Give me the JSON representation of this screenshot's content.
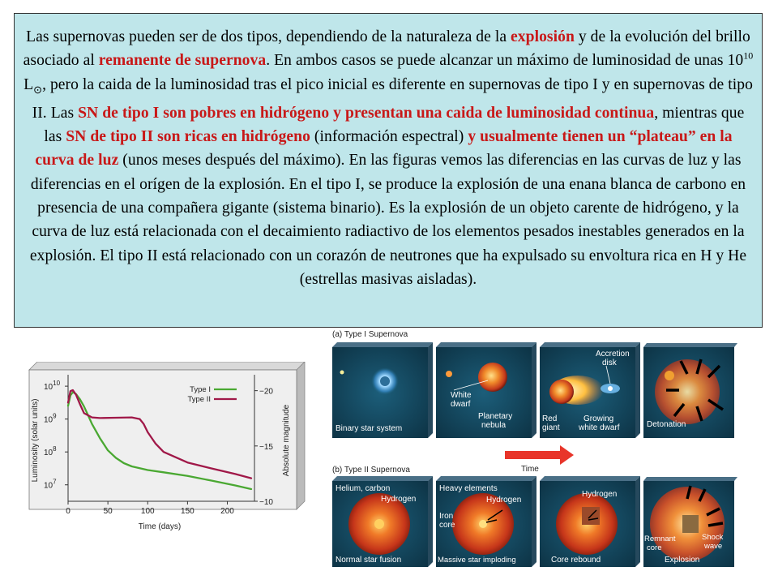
{
  "paragraph": {
    "t1": "Las supernovas pueden ser de dos tipos, dependiendo de la naturaleza de la ",
    "h1": "explosión",
    "t2": " y de la evolución del brillo asociado al ",
    "h2": "remanente de supernova",
    "t3": ". En ambos casos se puede alcanzar un máximo de luminosidad de unas 10",
    "sup": "10",
    "t4": " L",
    "sun": "⊙",
    "t5": ", pero la caida de la luminosidad tras el pico inicial es diferente en supernovas de tipo I y en supernovas de tipo II. Las ",
    "h3": "SN de tipo I son pobres en hidrógeno y presentan una caida de luminosidad continua",
    "t6": ", mientras que las ",
    "h4": "SN de tipo II son ricas en hidrógeno",
    "t7": " (información espectral) ",
    "h5": "y usualmente tienen un “plateau” en la curva de luz",
    "t8": " (unos meses después del máximo). En las figuras vemos las diferencias en las curvas de luz y las diferencias en el orígen de la explosión. En el tipo I, se produce la explosión de una enana blanca de carbono en presencia de una compañera gigante (sistema binario). Es la explosión de un objeto carente de hidrógeno, y la curva de luz está relacionada con el decaimiento radiactivo de los elementos pesados inestables generados en la explosión. El tipo II está relacionado con un corazón de neutrones que ha expulsado su envoltura rica en H y He (estrellas masivas aisladas)."
  },
  "chart_data": {
    "type": "line",
    "xlabel": "Time (days)",
    "ylabel": "Luminosity (solar units)",
    "y2label": "Absolute magnitude",
    "xticks": [
      "0",
      "50",
      "100",
      "150",
      "200"
    ],
    "yticks": [
      {
        "base": "10",
        "exp": "10"
      },
      {
        "base": "10",
        "exp": "9"
      },
      {
        "base": "10",
        "exp": "8"
      },
      {
        "base": "10",
        "exp": "7"
      }
    ],
    "y2ticks": [
      "−20",
      "−15",
      "−10"
    ],
    "xlim": [
      0,
      230
    ],
    "ylim_log10": [
      6.5,
      10.2
    ],
    "y2lim": [
      -21,
      -10
    ],
    "series": [
      {
        "name": "Type I",
        "color": "#4aa832",
        "x": [
          0,
          3,
          6,
          10,
          15,
          20,
          25,
          30,
          40,
          50,
          60,
          70,
          80,
          100,
          120,
          150,
          180,
          210,
          230
        ],
        "logL": [
          9.4,
          9.72,
          9.82,
          9.76,
          9.6,
          9.38,
          9.12,
          8.85,
          8.42,
          8.05,
          7.82,
          7.66,
          7.56,
          7.45,
          7.38,
          7.27,
          7.13,
          6.98,
          6.87
        ]
      },
      {
        "name": "Type II",
        "color": "#a01848",
        "x": [
          0,
          3,
          6,
          10,
          15,
          20,
          30,
          40,
          60,
          80,
          90,
          95,
          100,
          110,
          120,
          150,
          180,
          210,
          230
        ],
        "logL": [
          9.5,
          9.85,
          9.88,
          9.74,
          9.45,
          9.18,
          9.05,
          9.03,
          9.04,
          9.05,
          9.0,
          8.85,
          8.6,
          8.25,
          8.0,
          7.68,
          7.5,
          7.33,
          7.2
        ]
      }
    ]
  },
  "diagram": {
    "type1_title": "(a) Type I Supernova",
    "type2_title": "(b) Type II Supernova",
    "time_label": "Time",
    "type1": {
      "p1_caption": "Binary star system",
      "p2_label_a": "White",
      "p2_label_b": "dwarf",
      "p2_label_c": "Planetary",
      "p2_label_d": "nebula",
      "p3_label_a": "Accretion",
      "p3_label_b": "disk",
      "p3_label_c": "Red",
      "p3_label_d": "giant",
      "p3_label_e": "Growing",
      "p3_label_f": "white dwarf",
      "p4_caption": "Detonation"
    },
    "type2": {
      "p1_label_a": "Helium, carbon",
      "p1_label_b": "Hydrogen",
      "p1_caption": "Normal star fusion",
      "p2_label_a": "Heavy elements",
      "p2_label_b": "Hydrogen",
      "p2_label_c": "Iron",
      "p2_label_d": "core",
      "p2_caption": "Massive star imploding",
      "p3_label_a": "Hydrogen",
      "p3_caption": "Core rebound",
      "p4_label_a": "Remnant",
      "p4_label_b": "core",
      "p4_label_c": "Shock",
      "p4_label_d": "wave",
      "p4_caption": "Explosion"
    }
  }
}
